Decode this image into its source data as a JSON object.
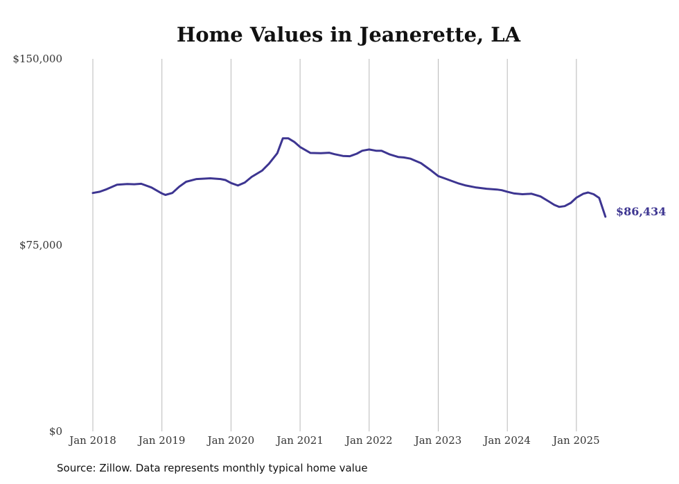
{
  "chart_data": {
    "type": "line",
    "title": "Home Values in Jeanerette, LA",
    "xlabel": "",
    "ylabel": "",
    "ylim": [
      0,
      150000
    ],
    "yticks": [
      {
        "value": 0,
        "label": "$0"
      },
      {
        "value": 75000,
        "label": "$75,000"
      },
      {
        "value": 150000,
        "label": "$150,000"
      }
    ],
    "xticks": [
      {
        "value": 2018,
        "label": "Jan 2018"
      },
      {
        "value": 2019,
        "label": "Jan 2019"
      },
      {
        "value": 2020,
        "label": "Jan 2020"
      },
      {
        "value": 2021,
        "label": "Jan 2021"
      },
      {
        "value": 2022,
        "label": "Jan 2022"
      },
      {
        "value": 2023,
        "label": "Jan 2023"
      },
      {
        "value": 2024,
        "label": "Jan 2024"
      },
      {
        "value": 2025,
        "label": "Jan 2025"
      }
    ],
    "xlim": [
      2018,
      2025.42
    ],
    "grid": "vertical",
    "line_color": "#3d3591",
    "series": [
      {
        "values": [
          [
            2018.0,
            96000
          ],
          [
            2018.1,
            96500
          ],
          [
            2018.2,
            97500
          ],
          [
            2018.35,
            99300
          ],
          [
            2018.5,
            99600
          ],
          [
            2018.6,
            99500
          ],
          [
            2018.7,
            99700
          ],
          [
            2018.85,
            98200
          ],
          [
            2019.0,
            95800
          ],
          [
            2019.05,
            95200
          ],
          [
            2019.15,
            96000
          ],
          [
            2019.25,
            98500
          ],
          [
            2019.35,
            100500
          ],
          [
            2019.5,
            101600
          ],
          [
            2019.7,
            101900
          ],
          [
            2019.85,
            101600
          ],
          [
            2019.92,
            101200
          ],
          [
            2020.0,
            100000
          ],
          [
            2020.1,
            99000
          ],
          [
            2020.2,
            100200
          ],
          [
            2020.3,
            102500
          ],
          [
            2020.45,
            105000
          ],
          [
            2020.55,
            107800
          ],
          [
            2020.67,
            112000
          ],
          [
            2020.75,
            118000
          ],
          [
            2020.83,
            118000
          ],
          [
            2020.92,
            116500
          ],
          [
            2021.0,
            114500
          ],
          [
            2021.15,
            112100
          ],
          [
            2021.3,
            112000
          ],
          [
            2021.42,
            112200
          ],
          [
            2021.5,
            111600
          ],
          [
            2021.62,
            110900
          ],
          [
            2021.72,
            110800
          ],
          [
            2021.82,
            111800
          ],
          [
            2021.9,
            113000
          ],
          [
            2022.0,
            113500
          ],
          [
            2022.1,
            113000
          ],
          [
            2022.18,
            113000
          ],
          [
            2022.3,
            111500
          ],
          [
            2022.42,
            110500
          ],
          [
            2022.5,
            110300
          ],
          [
            2022.6,
            109800
          ],
          [
            2022.75,
            108000
          ],
          [
            2022.9,
            105000
          ],
          [
            2023.0,
            102800
          ],
          [
            2023.1,
            101800
          ],
          [
            2023.2,
            100800
          ],
          [
            2023.3,
            99800
          ],
          [
            2023.4,
            99000
          ],
          [
            2023.55,
            98200
          ],
          [
            2023.7,
            97700
          ],
          [
            2023.85,
            97400
          ],
          [
            2023.92,
            97100
          ],
          [
            2024.0,
            96500
          ],
          [
            2024.1,
            95800
          ],
          [
            2024.22,
            95500
          ],
          [
            2024.35,
            95700
          ],
          [
            2024.48,
            94600
          ],
          [
            2024.6,
            92600
          ],
          [
            2024.68,
            91200
          ],
          [
            2024.75,
            90400
          ],
          [
            2024.83,
            90700
          ],
          [
            2024.92,
            92000
          ],
          [
            2025.0,
            94100
          ],
          [
            2025.1,
            95700
          ],
          [
            2025.17,
            96200
          ],
          [
            2025.25,
            95500
          ],
          [
            2025.33,
            94000
          ],
          [
            2025.42,
            86434
          ]
        ]
      }
    ],
    "end_label": "$86,434",
    "source": "Source: Zillow. Data represents monthly typical home value"
  }
}
